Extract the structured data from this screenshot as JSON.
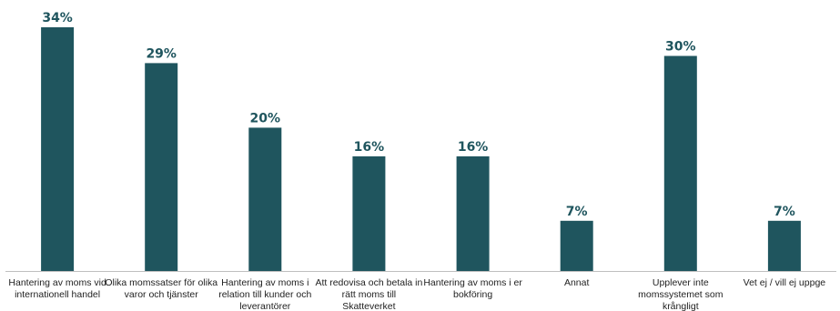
{
  "chart_data": {
    "type": "bar",
    "categories": [
      [
        "Hantering av moms vid",
        "internationell handel"
      ],
      [
        "Olika momssatser för olika",
        "varor och tjänster"
      ],
      [
        "Hantering av moms i",
        "relation till kunder och",
        "leverantörer"
      ],
      [
        "Att redovisa och betala in",
        "rätt moms till",
        "Skatteverket"
      ],
      [
        "Hantering av moms i er",
        "bokföring"
      ],
      [
        "Annat"
      ],
      [
        "Upplever inte",
        "momssystemet som",
        "krångligt"
      ],
      [
        "Vet ej / vill ej uppge"
      ]
    ],
    "values": [
      34,
      29,
      20,
      16,
      16,
      7,
      30,
      7
    ],
    "value_labels": [
      "34%",
      "29%",
      "20%",
      "16%",
      "16%",
      "7%",
      "30%",
      "7%"
    ],
    "bar_color": "#1f555e",
    "axis_color": "#bfbfbf",
    "ylim": [
      0,
      34
    ],
    "grid": false,
    "legend": "none"
  }
}
